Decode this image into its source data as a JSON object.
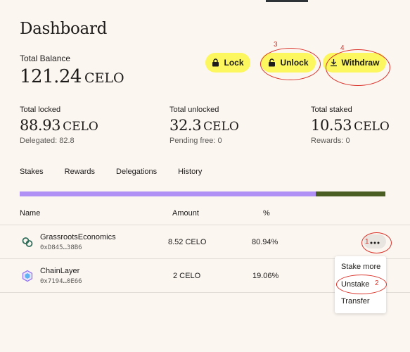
{
  "page": {
    "title": "Dashboard"
  },
  "balance": {
    "label": "Total Balance",
    "value": "121.24",
    "unit": "CELO"
  },
  "actions": {
    "lock_label": "Lock",
    "unlock_label": "Unlock",
    "withdraw_label": "Withdraw",
    "accent_color": "#fcf75f"
  },
  "stats": [
    {
      "label": "Total locked",
      "value": "88.93",
      "unit": "CELO",
      "sub": "Delegated: 82.8"
    },
    {
      "label": "Total unlocked",
      "value": "32.3",
      "unit": "CELO",
      "sub": "Pending free: 0"
    },
    {
      "label": "Total staked",
      "value": "10.53",
      "unit": "CELO",
      "sub": "Rewards: 0"
    }
  ],
  "tabs": [
    {
      "label": "Stakes"
    },
    {
      "label": "Rewards"
    },
    {
      "label": "Delegations"
    },
    {
      "label": "History"
    }
  ],
  "stake_bar": {
    "segments": [
      {
        "percent": 80.94,
        "color": "#b090f5"
      },
      {
        "percent": 19.06,
        "color": "#4a5d23"
      }
    ]
  },
  "table": {
    "headers": {
      "name": "Name",
      "amount": "Amount",
      "percent": "%"
    },
    "rows": [
      {
        "name": "GrassrootsEconomics",
        "address": "0xD845…38B6",
        "amount": "8.52 CELO",
        "percent": "80.94%",
        "icon": "grassroots-logo-icon"
      },
      {
        "name": "ChainLayer",
        "address": "0x7194…0E66",
        "amount": "2 CELO",
        "percent": "19.06%",
        "icon": "chainlayer-logo-icon"
      }
    ]
  },
  "row_menu": {
    "items": [
      {
        "label": "Stake more"
      },
      {
        "label": "Unstake"
      },
      {
        "label": "Transfer"
      }
    ]
  },
  "annotations": {
    "color": "#d9342b",
    "marks": [
      "1",
      "2",
      "3",
      "4"
    ]
  }
}
